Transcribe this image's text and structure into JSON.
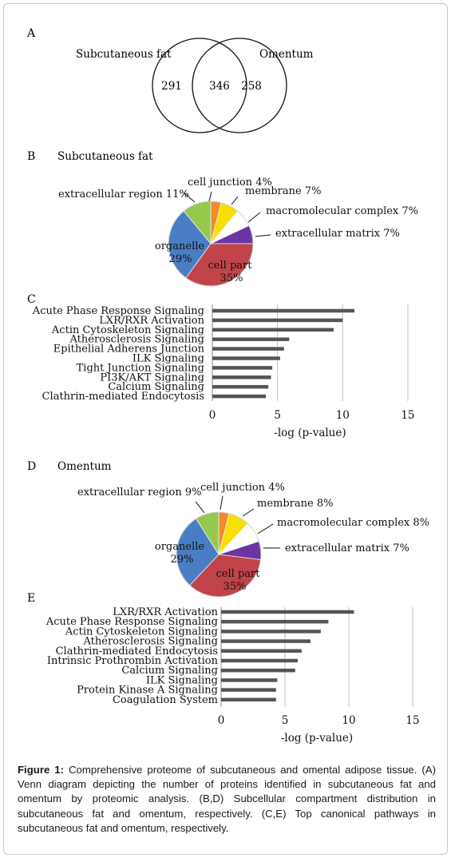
{
  "panels": {
    "a": {
      "letter": "A"
    },
    "b": {
      "letter": "B",
      "title": "Subcutaneous fat"
    },
    "c": {
      "letter": "C"
    },
    "d": {
      "letter": "D",
      "title": "Omentum"
    },
    "e": {
      "letter": "E"
    }
  },
  "venn": {
    "left_label": "Subcutaneous fat",
    "right_label": "Omentum",
    "left_only": "291",
    "overlap": "346",
    "right_only": "258"
  },
  "chart_data": [
    {
      "type": "pie",
      "panel": "B",
      "title": "Subcutaneous fat",
      "slices": [
        {
          "label": "cell junction",
          "value": 4,
          "text": "cell junction  4%",
          "color": "#f08c2a"
        },
        {
          "label": "membrane",
          "value": 7,
          "text": "membrane 7%",
          "color": "#f5e000"
        },
        {
          "label": "macromolecular complex",
          "value": 7,
          "text": "macromolecular complex 7%",
          "color": "#ffffff"
        },
        {
          "label": "extracellular matrix",
          "value": 7,
          "text": "extracellular matrix 7%",
          "color": "#6b35a3"
        },
        {
          "label": "cell part",
          "value": 35,
          "text1": "cell part",
          "text2": "35%",
          "color": "#c0444a"
        },
        {
          "label": "organelle",
          "value": 29,
          "text1": "organelle",
          "text2": "29%",
          "color": "#4a7ec4"
        },
        {
          "label": "extracellular region",
          "value": 11,
          "text": "extracellular region 11%",
          "color": "#96c850"
        }
      ]
    },
    {
      "type": "bar",
      "panel": "C",
      "orientation": "horizontal",
      "categories": [
        "Acute Phase Response Signaling",
        "LXR/RXR Activation",
        "Actin Cytoskeleton Signaling",
        "Atherosclerosis Signaling",
        "Epithelial Adherens Junction",
        "ILK Signaling",
        "Tight Junction Signaling",
        "PI3K/AKT Signaling",
        "Calcium Signaling",
        "Clathrin-mediated Endocytosis"
      ],
      "values": [
        10.9,
        10.0,
        9.3,
        5.9,
        5.5,
        5.2,
        4.6,
        4.5,
        4.3,
        4.1
      ],
      "xlabel": "-log (p-value)",
      "xlim": [
        0,
        15
      ],
      "xticks": [
        "0",
        "5",
        "10",
        "15"
      ]
    },
    {
      "type": "pie",
      "panel": "D",
      "title": "Omentum",
      "slices": [
        {
          "label": "cell junction",
          "value": 4,
          "text": "cell junction 4%",
          "color": "#f08c2a"
        },
        {
          "label": "membrane",
          "value": 8,
          "text": "membrane 8%",
          "color": "#f5e000"
        },
        {
          "label": "macromolecular complex",
          "value": 8,
          "text": "macromolecular complex 8%",
          "color": "#ffffff"
        },
        {
          "label": "extracellular matrix",
          "value": 7,
          "text": "extracellular matrix 7%",
          "color": "#6b35a3"
        },
        {
          "label": "cell part",
          "value": 35,
          "text1": "cell part",
          "text2": "35%",
          "color": "#c0444a"
        },
        {
          "label": "organelle",
          "value": 29,
          "text1": "organelle",
          "text2": "29%",
          "color": "#4a7ec4"
        },
        {
          "label": "extracellular region",
          "value": 9,
          "text": "extracellular region 9%",
          "color": "#96c850"
        }
      ]
    },
    {
      "type": "bar",
      "panel": "E",
      "orientation": "horizontal",
      "categories": [
        "LXR/RXR Activation",
        "Acute Phase Response Signaling",
        "Actin Cytoskeleton Signaling",
        "Atherosclerosis Signaling",
        "Clathrin-mediated Endocytosis",
        "Intrinsic Prothrombin Activation",
        "Calcium Signaling",
        "ILK Signaling",
        "Protein Kinase A Signaling",
        "Coagulation System"
      ],
      "values": [
        10.4,
        8.4,
        7.8,
        7.0,
        6.3,
        6.0,
        5.8,
        4.4,
        4.3,
        4.3
      ],
      "xlabel": "-log (p-value)",
      "xlim": [
        0,
        15
      ],
      "xticks": [
        "0",
        "5",
        "10",
        "15"
      ]
    }
  ],
  "caption": {
    "label": "Figure 1:",
    "text": " Comprehensive proteome of subcutaneous and omental adipose tissue. (A) Venn diagram depicting the number of proteins identified in subcutaneous fat and omentum by proteomic analysis. (B,D) Subcellular compartment distribution in subcutaneous fat and omentum, respectively. (C,E) Top canonical pathways in subcutaneous fat and omentum, respectively."
  },
  "colors": {
    "bar": "#555555",
    "grid": "#bfbfbf",
    "axis": "#888888"
  }
}
